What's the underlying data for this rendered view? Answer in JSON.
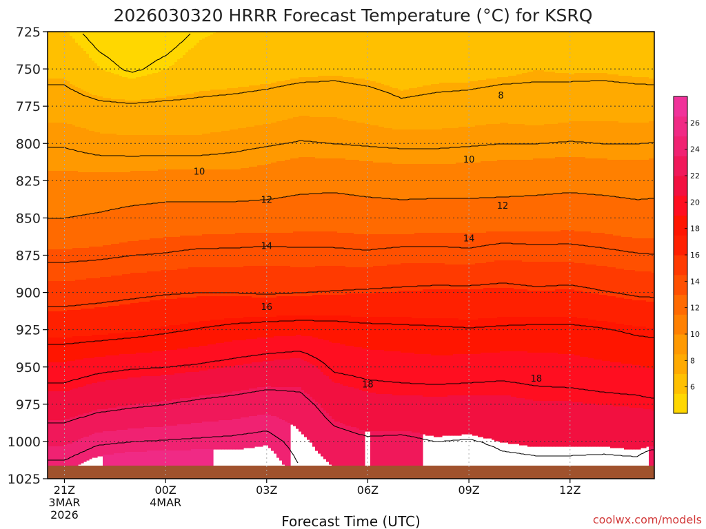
{
  "chart_data": {
    "type": "heatmap",
    "subtype": "filled-contour time-height cross-section",
    "title": "2026030320 HRRR Forecast Temperature (°C) for KSRQ",
    "xlabel": "Forecast Time (UTC)",
    "ylabel": "",
    "x_hours": [
      21,
      22,
      23,
      24,
      25,
      26,
      27,
      28,
      29,
      30,
      31,
      32,
      33,
      34,
      35,
      36,
      37,
      38,
      39
    ],
    "x_ticks": [
      {
        "hour": 21,
        "label": "21Z",
        "sub": [
          "3MAR",
          "2026"
        ]
      },
      {
        "hour": 24,
        "label": "00Z",
        "sub": [
          "4MAR"
        ]
      },
      {
        "hour": 27,
        "label": "03Z",
        "sub": []
      },
      {
        "hour": 30,
        "label": "06Z",
        "sub": []
      },
      {
        "hour": 33,
        "label": "09Z",
        "sub": []
      },
      {
        "hour": 36,
        "label": "12Z",
        "sub": []
      }
    ],
    "y_levels_hPa": [
      725,
      750,
      775,
      800,
      825,
      850,
      875,
      900,
      925,
      950,
      975,
      1000,
      1025
    ],
    "ylim": [
      725,
      1025
    ],
    "xlim": [
      20.5,
      38.5
    ],
    "grid": true,
    "contour_levels": [
      5,
      6,
      7,
      8,
      9,
      10,
      11,
      12,
      13,
      14,
      15,
      16,
      17,
      18,
      19,
      20,
      21,
      22,
      23,
      24,
      25,
      26
    ],
    "labeled_isotherms": [
      {
        "value": 8,
        "x_hour": 33.95,
        "p": 768
      },
      {
        "value": 10,
        "x_hour": 25.0,
        "p": 819
      },
      {
        "value": 10,
        "x_hour": 33.0,
        "p": 811
      },
      {
        "value": 12,
        "x_hour": 27.0,
        "p": 838
      },
      {
        "value": 12,
        "x_hour": 34.0,
        "p": 842
      },
      {
        "value": 14,
        "x_hour": 27.0,
        "p": 869
      },
      {
        "value": 14,
        "x_hour": 33.0,
        "p": 864
      },
      {
        "value": 16,
        "x_hour": 27.0,
        "p": 910
      },
      {
        "value": 18,
        "x_hour": 30.0,
        "p": 962
      },
      {
        "value": 18,
        "x_hour": 35.0,
        "p": 958
      }
    ],
    "colorbar": {
      "ticks": [
        6,
        8,
        10,
        12,
        14,
        16,
        18,
        20,
        22,
        24,
        26
      ],
      "range": [
        4,
        28
      ],
      "colors": [
        "#FFD700",
        "#FFC000",
        "#FFAA00",
        "#FF9900",
        "#FF8000",
        "#FF6A00",
        "#FF5000",
        "#FF3A00",
        "#FF2000",
        "#FF1500",
        "#FF0E20",
        "#F21040",
        "#F0185A",
        "#F02272",
        "#F02A85",
        "#F0329A"
      ]
    },
    "surface_color": "#A0522D",
    "credit": "coolwx.com/models"
  }
}
